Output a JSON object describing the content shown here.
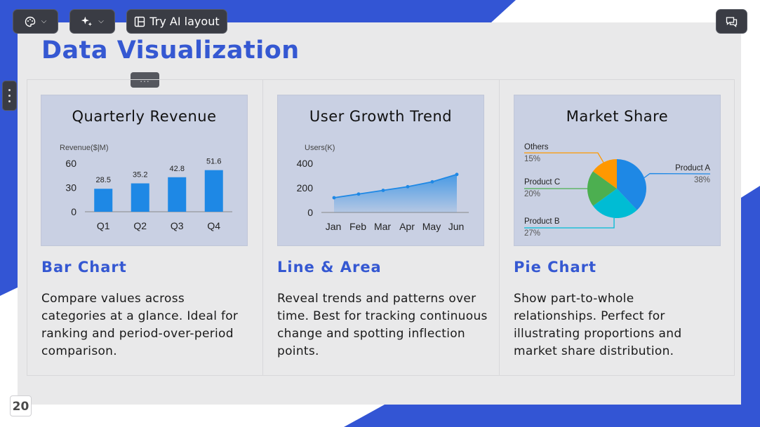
{
  "toolbar": {
    "theme_icon": "palette-icon",
    "ai_icon": "sparkle-icon",
    "ai_layout_label": "Try AI layout",
    "layout_icon": "layout-icon",
    "comment_icon": "comment-icon"
  },
  "page": {
    "title": "Data Visualization",
    "page_number": "20",
    "more_label": "..."
  },
  "colors": {
    "accent": "#3558d2",
    "bar": "#1e88e5",
    "slide_bg": "#e9e9ea",
    "chart_bg": "#c9d0e3"
  },
  "cards": [
    {
      "heading": "Bar Chart",
      "description": "Compare values across categories at a glance. Ideal for ranking and period-over-period comparison."
    },
    {
      "heading": "Line & Area",
      "description": "Reveal trends and patterns over time. Best for tracking continuous change and spotting inflection points."
    },
    {
      "heading": "Pie Chart",
      "description": "Show part-to-whole relationships. Perfect for illustrating proportions and market share distribution."
    }
  ],
  "chart_data": [
    {
      "type": "bar",
      "title": "Quarterly Revenue",
      "ylabel": "Revenue($|M)",
      "categories": [
        "Q1",
        "Q2",
        "Q3",
        "Q4"
      ],
      "values": [
        28.5,
        35.2,
        42.8,
        51.6
      ],
      "value_labels": [
        "28.5",
        "35.2",
        "42.8",
        "51.6"
      ],
      "yticks": [
        "60",
        "30",
        "0"
      ],
      "ylim": [
        0,
        60
      ]
    },
    {
      "type": "area",
      "title": "User Growth Trend",
      "ylabel": "Users(K)",
      "categories": [
        "Jan",
        "Feb",
        "Mar",
        "Apr",
        "May",
        "Jun"
      ],
      "values": [
        120,
        150,
        180,
        210,
        250,
        310
      ],
      "yticks": [
        "400",
        "200",
        "0"
      ],
      "ylim": [
        0,
        400
      ]
    },
    {
      "type": "pie",
      "title": "Market Share",
      "slices": [
        {
          "label": "Product A",
          "pct_label": "38%",
          "value": 38,
          "color": "#1e88e5"
        },
        {
          "label": "Product B",
          "pct_label": "27%",
          "value": 27,
          "color": "#00bcd4"
        },
        {
          "label": "Product C",
          "pct_label": "20%",
          "value": 20,
          "color": "#4caf50"
        },
        {
          "label": "Others",
          "pct_label": "15%",
          "value": 15,
          "color": "#ff9800"
        }
      ]
    }
  ]
}
